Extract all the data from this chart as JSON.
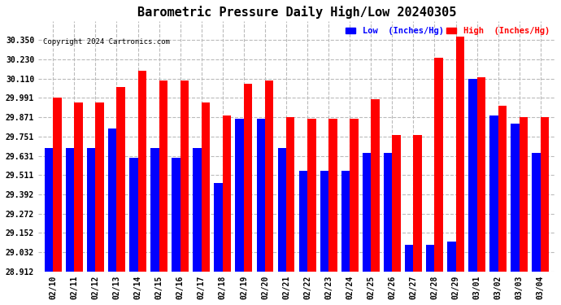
{
  "title": "Barometric Pressure Daily High/Low 20240305",
  "copyright": "Copyright 2024 Cartronics.com",
  "legend_low": "Low  (Inches/Hg)",
  "legend_high": "High  (Inches/Hg)",
  "dates": [
    "02/10",
    "02/11",
    "02/12",
    "02/13",
    "02/14",
    "02/15",
    "02/16",
    "02/17",
    "02/18",
    "02/19",
    "02/20",
    "02/21",
    "02/22",
    "02/23",
    "02/24",
    "02/25",
    "02/26",
    "02/27",
    "02/28",
    "02/29",
    "03/01",
    "03/02",
    "03/03",
    "03/04"
  ],
  "low_values": [
    29.68,
    29.68,
    29.68,
    29.8,
    29.62,
    29.68,
    29.62,
    29.68,
    29.46,
    29.86,
    29.86,
    29.68,
    29.54,
    29.54,
    29.54,
    29.65,
    29.65,
    29.08,
    29.08,
    29.1,
    30.11,
    29.88,
    29.83,
    29.65
  ],
  "high_values": [
    29.99,
    29.96,
    29.96,
    30.06,
    30.16,
    30.1,
    30.1,
    29.96,
    29.88,
    30.08,
    30.1,
    29.87,
    29.86,
    29.86,
    29.86,
    29.98,
    29.76,
    29.76,
    30.24,
    30.37,
    30.12,
    29.94,
    29.87,
    29.87
  ],
  "low_color": "#0000ff",
  "high_color": "#ff0000",
  "bg_color": "#ffffff",
  "grid_color": "#bbbbbb",
  "ylim_min": 28.912,
  "ylim_max": 30.47,
  "yticks": [
    28.912,
    29.032,
    29.152,
    29.272,
    29.392,
    29.511,
    29.631,
    29.751,
    29.871,
    29.991,
    30.11,
    30.23,
    30.35
  ],
  "title_fontsize": 11,
  "bar_width": 0.4,
  "figwidth": 6.9,
  "figheight": 3.75,
  "dpi": 100
}
